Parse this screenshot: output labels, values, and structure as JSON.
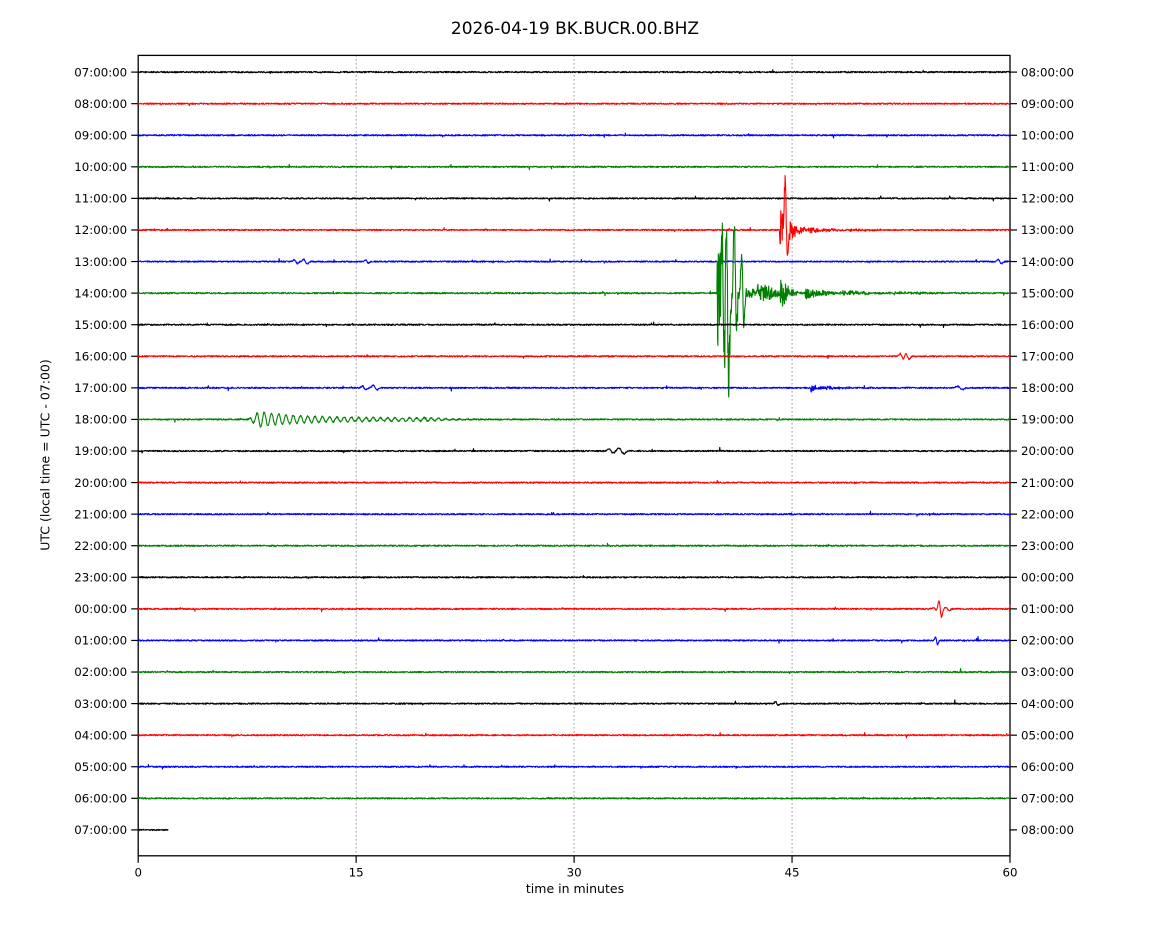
{
  "figure": {
    "title": "2026-04-19 BK.BUCR.00.BHZ",
    "xlabel": "time in minutes",
    "ylabel": "UTC (local time = UTC - 07:00)"
  },
  "chart_data": {
    "type": "line",
    "variant": "helicorder-dayplot",
    "title": "2026-04-19 BK.BUCR.00.BHZ",
    "station": "BK.BUCR.00.BHZ",
    "date": "2026-04-19",
    "xlabel": "time in minutes",
    "ylabel": "UTC (local time = UTC - 07:00)",
    "xlim": [
      0,
      60
    ],
    "x_ticks": [
      0,
      15,
      30,
      45,
      60
    ],
    "minutes_per_line": 60,
    "grid": {
      "vertical_dotted_minutes": [
        15,
        30,
        45
      ]
    },
    "legend": "none",
    "colors": {
      "black": "#000000",
      "red": "#ff0000",
      "blue": "#0000ff",
      "green": "#008000"
    },
    "rows": [
      {
        "left_label": "07:00:00",
        "right_label": "08:00:00",
        "color": "black",
        "events": []
      },
      {
        "left_label": "08:00:00",
        "right_label": "09:00:00",
        "color": "red",
        "events": []
      },
      {
        "left_label": "09:00:00",
        "right_label": "10:00:00",
        "color": "blue",
        "events": []
      },
      {
        "left_label": "10:00:00",
        "right_label": "11:00:00",
        "color": "green",
        "events": []
      },
      {
        "left_label": "11:00:00",
        "right_label": "12:00:00",
        "color": "black",
        "events": []
      },
      {
        "left_label": "12:00:00",
        "right_label": "13:00:00",
        "color": "red",
        "events": [
          {
            "type": "quake",
            "phases": [
              {
                "t": 44.15,
                "amp": 24,
                "dur": 1.3
              },
              {
                "t": 44.8,
                "amp": 9,
                "dur": 2.2
              },
              {
                "t": 46.2,
                "amp": 3,
                "dur": 4
              },
              {
                "t": 49.0,
                "amp": 1.2,
                "dur": 6
              }
            ]
          },
          {
            "type": "spike",
            "t": 44.6,
            "up": 52,
            "down": 30,
            "w": 0.14
          }
        ]
      },
      {
        "left_label": "13:00:00",
        "right_label": "14:00:00",
        "color": "blue",
        "events": [
          {
            "type": "spike",
            "t": 10.85,
            "up": 2,
            "down": 2,
            "w": 0.2
          },
          {
            "type": "spike",
            "t": 11.5,
            "up": 2.5,
            "down": 2.5,
            "w": 0.22
          },
          {
            "type": "spike",
            "t": 15.75,
            "up": 1.6,
            "down": 1.6,
            "w": 0.18
          },
          {
            "type": "spike",
            "t": 59.3,
            "up": 2.2,
            "down": 2.2,
            "w": 0.2
          }
        ]
      },
      {
        "left_label": "14:00:00",
        "right_label": "15:00:00",
        "color": "green",
        "events": [
          {
            "type": "quake",
            "phases": [
              {
                "t": 39.85,
                "amp": 55,
                "dur": 2.9
              },
              {
                "t": 42.6,
                "amp": 14,
                "dur": 3.2
              },
              {
                "t": 44.2,
                "amp": 16,
                "dur": 1.6
              },
              {
                "t": 45.9,
                "amp": 7,
                "dur": 3.5
              },
              {
                "t": 48.5,
                "amp": 3,
                "dur": 6
              },
              {
                "t": 52.0,
                "amp": 1.2,
                "dur": 8
              }
            ]
          },
          {
            "type": "spike",
            "t": 40.28,
            "up": 62,
            "down": 92,
            "w": 0.16
          },
          {
            "type": "spike",
            "t": 40.55,
            "up": 101,
            "down": 102,
            "w": 0.16
          },
          {
            "type": "spike",
            "t": 41.1,
            "up": 70,
            "down": 45,
            "w": 0.14
          },
          {
            "type": "spike",
            "t": 41.6,
            "up": 40,
            "down": 30,
            "w": 0.14
          }
        ]
      },
      {
        "left_label": "15:00:00",
        "right_label": "16:00:00",
        "color": "black",
        "events": []
      },
      {
        "left_label": "16:00:00",
        "right_label": "17:00:00",
        "color": "red",
        "events": [
          {
            "type": "spike",
            "t": 52.55,
            "up": 3,
            "down": 3,
            "w": 0.2
          },
          {
            "type": "spike",
            "t": 52.95,
            "up": 3,
            "down": 3,
            "w": 0.2
          }
        ]
      },
      {
        "left_label": "17:00:00",
        "right_label": "18:00:00",
        "color": "blue",
        "events": [
          {
            "type": "spike",
            "t": 15.55,
            "up": 2,
            "down": 2,
            "w": 0.2
          },
          {
            "type": "spike",
            "t": 16.3,
            "up": 2.5,
            "down": 2,
            "w": 0.25
          },
          {
            "type": "quake",
            "phases": [
              {
                "t": 46.3,
                "amp": 5,
                "dur": 1.2
              },
              {
                "t": 47.0,
                "amp": 1.8,
                "dur": 5
              }
            ]
          },
          {
            "type": "spike",
            "t": 56.55,
            "up": 1.8,
            "down": 1.8,
            "w": 0.3
          }
        ]
      },
      {
        "left_label": "18:00:00",
        "right_label": "19:00:00",
        "color": "green",
        "events": [
          {
            "type": "wavepacket",
            "t": 7.55,
            "amp": 8,
            "rise": 0.8,
            "tau": 2.5,
            "tail": 1.6,
            "tail_end": 20,
            "period": 0.5
          }
        ]
      },
      {
        "left_label": "19:00:00",
        "right_label": "20:00:00",
        "color": "black",
        "events": [
          {
            "type": "spike",
            "t": 32.55,
            "up": 2.2,
            "down": 2.2,
            "w": 0.25
          },
          {
            "type": "spike",
            "t": 33.25,
            "up": 3,
            "down": 3,
            "w": 0.3
          }
        ]
      },
      {
        "left_label": "20:00:00",
        "right_label": "21:00:00",
        "color": "red",
        "events": []
      },
      {
        "left_label": "21:00:00",
        "right_label": "22:00:00",
        "color": "blue",
        "events": []
      },
      {
        "left_label": "22:00:00",
        "right_label": "23:00:00",
        "color": "green",
        "events": []
      },
      {
        "left_label": "23:00:00",
        "right_label": "00:00:00",
        "color": "black",
        "events": []
      },
      {
        "left_label": "00:00:00",
        "right_label": "01:00:00",
        "color": "red",
        "events": [
          {
            "type": "spike",
            "t": 54.85,
            "up": 1.5,
            "down": 1.5,
            "w": 0.2
          },
          {
            "type": "spike",
            "t": 55.2,
            "up": 9,
            "down": 9,
            "w": 0.16
          },
          {
            "type": "spike",
            "t": 55.7,
            "up": 1.5,
            "down": 1.5,
            "w": 0.2
          }
        ]
      },
      {
        "left_label": "01:00:00",
        "right_label": "02:00:00",
        "color": "blue",
        "events": [
          {
            "type": "spike",
            "t": 54.95,
            "up": 4,
            "down": 5,
            "w": 0.12
          }
        ]
      },
      {
        "left_label": "02:00:00",
        "right_label": "03:00:00",
        "color": "green",
        "events": []
      },
      {
        "left_label": "03:00:00",
        "right_label": "04:00:00",
        "color": "black",
        "events": [
          {
            "type": "spike",
            "t": 43.95,
            "up": 2,
            "down": 2,
            "w": 0.15
          }
        ]
      },
      {
        "left_label": "04:00:00",
        "right_label": "05:00:00",
        "color": "red",
        "events": []
      },
      {
        "left_label": "05:00:00",
        "right_label": "06:00:00",
        "color": "blue",
        "events": []
      },
      {
        "left_label": "06:00:00",
        "right_label": "07:00:00",
        "color": "green",
        "events": []
      },
      {
        "left_label": "07:00:00",
        "right_label": "08:00:00",
        "color": "black",
        "extent": [
          0,
          2.05
        ],
        "events": []
      }
    ]
  }
}
